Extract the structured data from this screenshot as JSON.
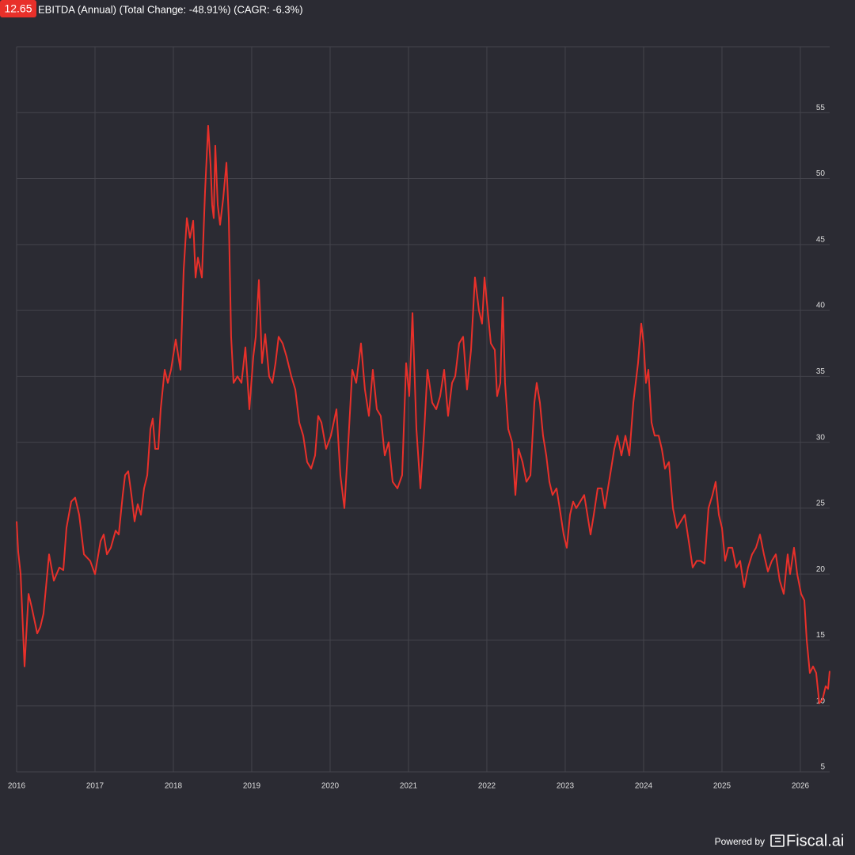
{
  "chart_data": {
    "type": "line",
    "title": "EBITDA (Annual) (Total Change: -48.91%) (CAGR: -6.3%)",
    "color": "#e8302a",
    "grid": true,
    "xlim": [
      2016,
      2026.374
    ],
    "xticks": [
      2016,
      2017,
      2018,
      2019,
      2020,
      2021,
      2022,
      2023,
      2024,
      2025,
      2026
    ],
    "ylim": [
      5,
      60
    ],
    "yticks": [
      5,
      10,
      15,
      20,
      25,
      30,
      35,
      40,
      45,
      50,
      55
    ],
    "x": [
      2016.0,
      2016.02,
      2016.051,
      2016.101,
      2016.152,
      2016.192,
      2016.263,
      2016.303,
      2016.343,
      2016.414,
      2016.475,
      2016.545,
      2016.596,
      2016.636,
      2016.697,
      2016.747,
      2016.798,
      2016.859,
      2016.939,
      2017.0,
      2017.071,
      2017.111,
      2017.152,
      2017.202,
      2017.263,
      2017.303,
      2017.354,
      2017.384,
      2017.424,
      2017.465,
      2017.505,
      2017.545,
      2017.586,
      2017.626,
      2017.667,
      2017.707,
      2017.737,
      2017.768,
      2017.808,
      2017.838,
      2017.889,
      2017.929,
      2017.97,
      2018.03,
      2018.091,
      2018.131,
      2018.172,
      2018.212,
      2018.253,
      2018.283,
      2018.313,
      2018.364,
      2018.404,
      2018.444,
      2018.475,
      2018.495,
      2018.515,
      2018.535,
      2018.566,
      2018.596,
      2018.636,
      2018.677,
      2018.707,
      2018.737,
      2018.768,
      2018.818,
      2018.869,
      2018.919,
      2018.97,
      2019.02,
      2019.051,
      2019.091,
      2019.131,
      2019.172,
      2019.222,
      2019.263,
      2019.303,
      2019.343,
      2019.394,
      2019.444,
      2019.505,
      2019.556,
      2019.606,
      2019.657,
      2019.707,
      2019.758,
      2019.808,
      2019.848,
      2019.889,
      2019.949,
      2020.01,
      2020.081,
      2020.131,
      2020.182,
      2020.232,
      2020.283,
      2020.333,
      2020.394,
      2020.444,
      2020.495,
      2020.545,
      2020.596,
      2020.646,
      2020.697,
      2020.747,
      2020.798,
      2020.859,
      2020.919,
      2020.97,
      2021.01,
      2021.051,
      2021.101,
      2021.152,
      2021.202,
      2021.242,
      2021.303,
      2021.354,
      2021.404,
      2021.455,
      2021.505,
      2021.556,
      2021.596,
      2021.646,
      2021.697,
      2021.747,
      2021.798,
      2021.848,
      2021.899,
      2021.939,
      2021.97,
      2022.01,
      2022.051,
      2022.101,
      2022.131,
      2022.172,
      2022.202,
      2022.232,
      2022.273,
      2022.323,
      2022.364,
      2022.404,
      2022.455,
      2022.505,
      2022.556,
      2022.606,
      2022.636,
      2022.677,
      2022.717,
      2022.758,
      2022.798,
      2022.838,
      2022.889,
      2022.929,
      2022.98,
      2023.02,
      2023.061,
      2023.101,
      2023.141,
      2023.192,
      2023.242,
      2023.283,
      2023.323,
      2023.364,
      2023.414,
      2023.465,
      2023.505,
      2023.545,
      2023.586,
      2023.626,
      2023.667,
      2023.717,
      2023.768,
      2023.818,
      2023.869,
      2023.929,
      2023.97,
      2024.0,
      2024.03,
      2024.061,
      2024.101,
      2024.141,
      2024.192,
      2024.232,
      2024.273,
      2024.323,
      2024.374,
      2024.424,
      2024.475,
      2024.525,
      2024.576,
      2024.626,
      2024.677,
      2024.727,
      2024.778,
      2024.828,
      2024.879,
      2024.919,
      2024.96,
      2025.0,
      2025.04,
      2025.081,
      2025.131,
      2025.182,
      2025.232,
      2025.283,
      2025.333,
      2025.384,
      2025.434,
      2025.485,
      2025.535,
      2025.586,
      2025.636,
      2025.687,
      2025.737,
      2025.788,
      2025.838,
      2025.869,
      2025.919,
      2025.96,
      2026.01,
      2026.051,
      2026.081,
      2026.121,
      2026.162,
      2026.202,
      2026.242,
      2026.283,
      2026.323,
      2026.354,
      2026.374
    ],
    "values": [
      24,
      21.7,
      20,
      13,
      18.5,
      17.5,
      15.5,
      16,
      17,
      21.5,
      19.5,
      20.5,
      20.3,
      23.5,
      25.5,
      25.8,
      24.5,
      21.5,
      21,
      20,
      22.5,
      23,
      21.5,
      22,
      23.3,
      23,
      26,
      27.5,
      27.8,
      26,
      24,
      25.3,
      24.5,
      26.5,
      27.5,
      31,
      31.8,
      29.5,
      29.5,
      32.5,
      35.5,
      34.5,
      35.5,
      37.8,
      35.5,
      43,
      47,
      45.5,
      46.8,
      42.5,
      44,
      42.5,
      49,
      54,
      51,
      48,
      47,
      52.5,
      48,
      46.5,
      48.5,
      51.2,
      47,
      38,
      34.5,
      35,
      34.5,
      37.2,
      32.5,
      36.5,
      38,
      42.3,
      36,
      38.2,
      35,
      34.5,
      36,
      38,
      37.5,
      36.5,
      35,
      34,
      31.5,
      30.5,
      28.5,
      28,
      29,
      32,
      31.5,
      29.5,
      30.5,
      32.5,
      27.5,
      25,
      30,
      35.5,
      34.5,
      37.5,
      34,
      32,
      35.5,
      32.5,
      32,
      29,
      30,
      27,
      26.5,
      27.5,
      36,
      33.5,
      39.8,
      31,
      26.5,
      31,
      35.5,
      33,
      32.5,
      33.5,
      35.5,
      32,
      34.5,
      35,
      37.5,
      38,
      34,
      37,
      42.5,
      40,
      39,
      42.5,
      40,
      37.5,
      37,
      33.5,
      34.5,
      41,
      34.5,
      31,
      30,
      26,
      29.5,
      28.5,
      27,
      27.5,
      33,
      34.5,
      33,
      30.5,
      29,
      27,
      26,
      26.5,
      25,
      23,
      22,
      24.5,
      25.5,
      25,
      25.5,
      26,
      24.5,
      23,
      24.5,
      26.5,
      26.5,
      25,
      26.5,
      28,
      29.5,
      30.5,
      29,
      30.5,
      29,
      33,
      36,
      39,
      37.5,
      34.5,
      35.5,
      31.5,
      30.5,
      30.5,
      29.5,
      28,
      28.5,
      25,
      23.5,
      24,
      24.5,
      22.5,
      20.5,
      21,
      21,
      20.8,
      25,
      26,
      27,
      24.5,
      23.5,
      21,
      22,
      22,
      20.5,
      21,
      19,
      20.5,
      21.5,
      22,
      23,
      21.5,
      20.2,
      21,
      21.5,
      19.5,
      18.5,
      21.5,
      20,
      22,
      20,
      18.5,
      18,
      15,
      12.5,
      13,
      12.5,
      10.2,
      10.5,
      11.5,
      11.3,
      12.65
    ]
  },
  "footer": {
    "powered_by": "Powered by",
    "brand": "Fiscal.ai"
  }
}
